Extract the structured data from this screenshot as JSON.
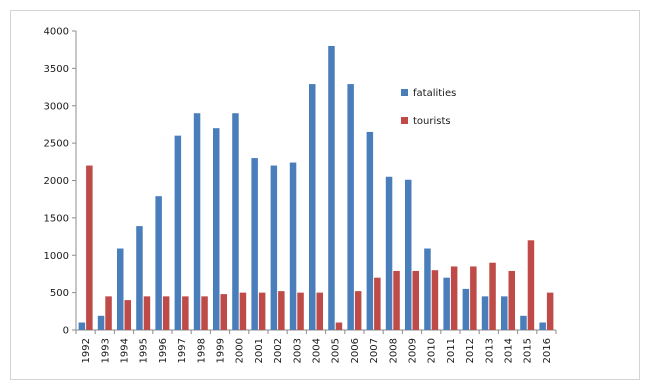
{
  "chart_data": {
    "type": "bar",
    "categories": [
      "1992",
      "1993",
      "1994",
      "1995",
      "1996",
      "1997",
      "1998",
      "1999",
      "2000",
      "2001",
      "2002",
      "2003",
      "2004",
      "2005",
      "2006",
      "2007",
      "2008",
      "2009",
      "2010",
      "2011",
      "2012",
      "2013",
      "2014",
      "2015",
      "2016"
    ],
    "series": [
      {
        "name": "fatalities",
        "color": "#4a7ebb",
        "values": [
          100,
          190,
          1090,
          1390,
          1790,
          2600,
          2900,
          2700,
          2900,
          2300,
          2200,
          2240,
          3290,
          3800,
          3290,
          2650,
          2050,
          2010,
          1090,
          700,
          550,
          450,
          450,
          190,
          100
        ]
      },
      {
        "name": "tourists",
        "color": "#be4b48",
        "values": [
          2200,
          450,
          400,
          450,
          450,
          450,
          450,
          480,
          500,
          500,
          520,
          500,
          500,
          100,
          520,
          700,
          790,
          790,
          800,
          850,
          850,
          900,
          790,
          1200,
          500
        ]
      }
    ],
    "title": "",
    "xlabel": "",
    "ylabel": "",
    "ylim": [
      0,
      4000
    ],
    "yticks": [
      "0",
      "500",
      "1000",
      "1500",
      "2000",
      "2500",
      "3000",
      "3500",
      "4000"
    ],
    "grid": false,
    "legend_position": "right"
  }
}
